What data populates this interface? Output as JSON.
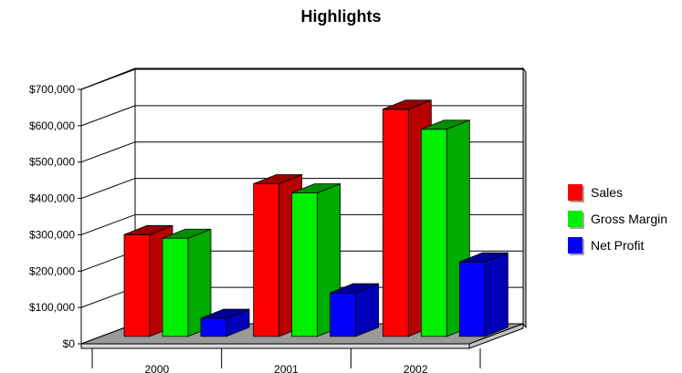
{
  "chart_data": {
    "type": "bar",
    "title": "Highlights",
    "categories": [
      "2000",
      "2001",
      "2002"
    ],
    "series": [
      {
        "name": "Sales",
        "color": "#ff0000",
        "values": [
          280000,
          420000,
          625000
        ]
      },
      {
        "name": "Gross Margin",
        "color": "#00ee00",
        "values": [
          270000,
          395000,
          570000
        ]
      },
      {
        "name": "Net Profit",
        "color": "#0000ff",
        "values": [
          50000,
          120000,
          205000
        ]
      }
    ],
    "y_tick_labels": [
      "$0",
      "$100,000",
      "$200,000",
      "$300,000",
      "$400,000",
      "$500,000",
      "$600,000",
      "$700,000"
    ],
    "ylim": [
      0,
      700000
    ],
    "xlabel": "",
    "ylabel": "",
    "grid": true,
    "legend_position": "right",
    "style": "3d"
  }
}
